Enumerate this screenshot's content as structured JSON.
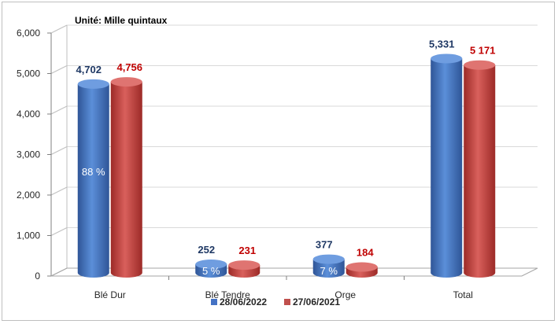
{
  "chart_data": {
    "type": "bar",
    "unit_label": "Unité: Mille quintaux",
    "categories": [
      "Blé Dur",
      "Blé Tendre",
      "Orge",
      "Total"
    ],
    "series": [
      {
        "name": "28/06/2022",
        "color": "#4472c4",
        "label_color": "#1f3864",
        "values": [
          4702,
          252,
          377,
          5331
        ],
        "labels": [
          "4,702",
          "252",
          "377",
          "5,331"
        ],
        "share_labels": [
          "88 %",
          "5 %",
          "7 %",
          ""
        ]
      },
      {
        "name": "27/06/2021",
        "color": "#c0504d",
        "label_color": "#c00000",
        "values": [
          4756,
          231,
          184,
          5171
        ],
        "labels": [
          "4,756",
          "231",
          "184",
          "5 171"
        ]
      }
    ],
    "yticks": [
      "0",
      "1,000",
      "2,000",
      "3,000",
      "4,000",
      "5,000",
      "6,000"
    ],
    "ylim": [
      0,
      6000
    ],
    "grid": true,
    "legend_position": "bottom"
  }
}
